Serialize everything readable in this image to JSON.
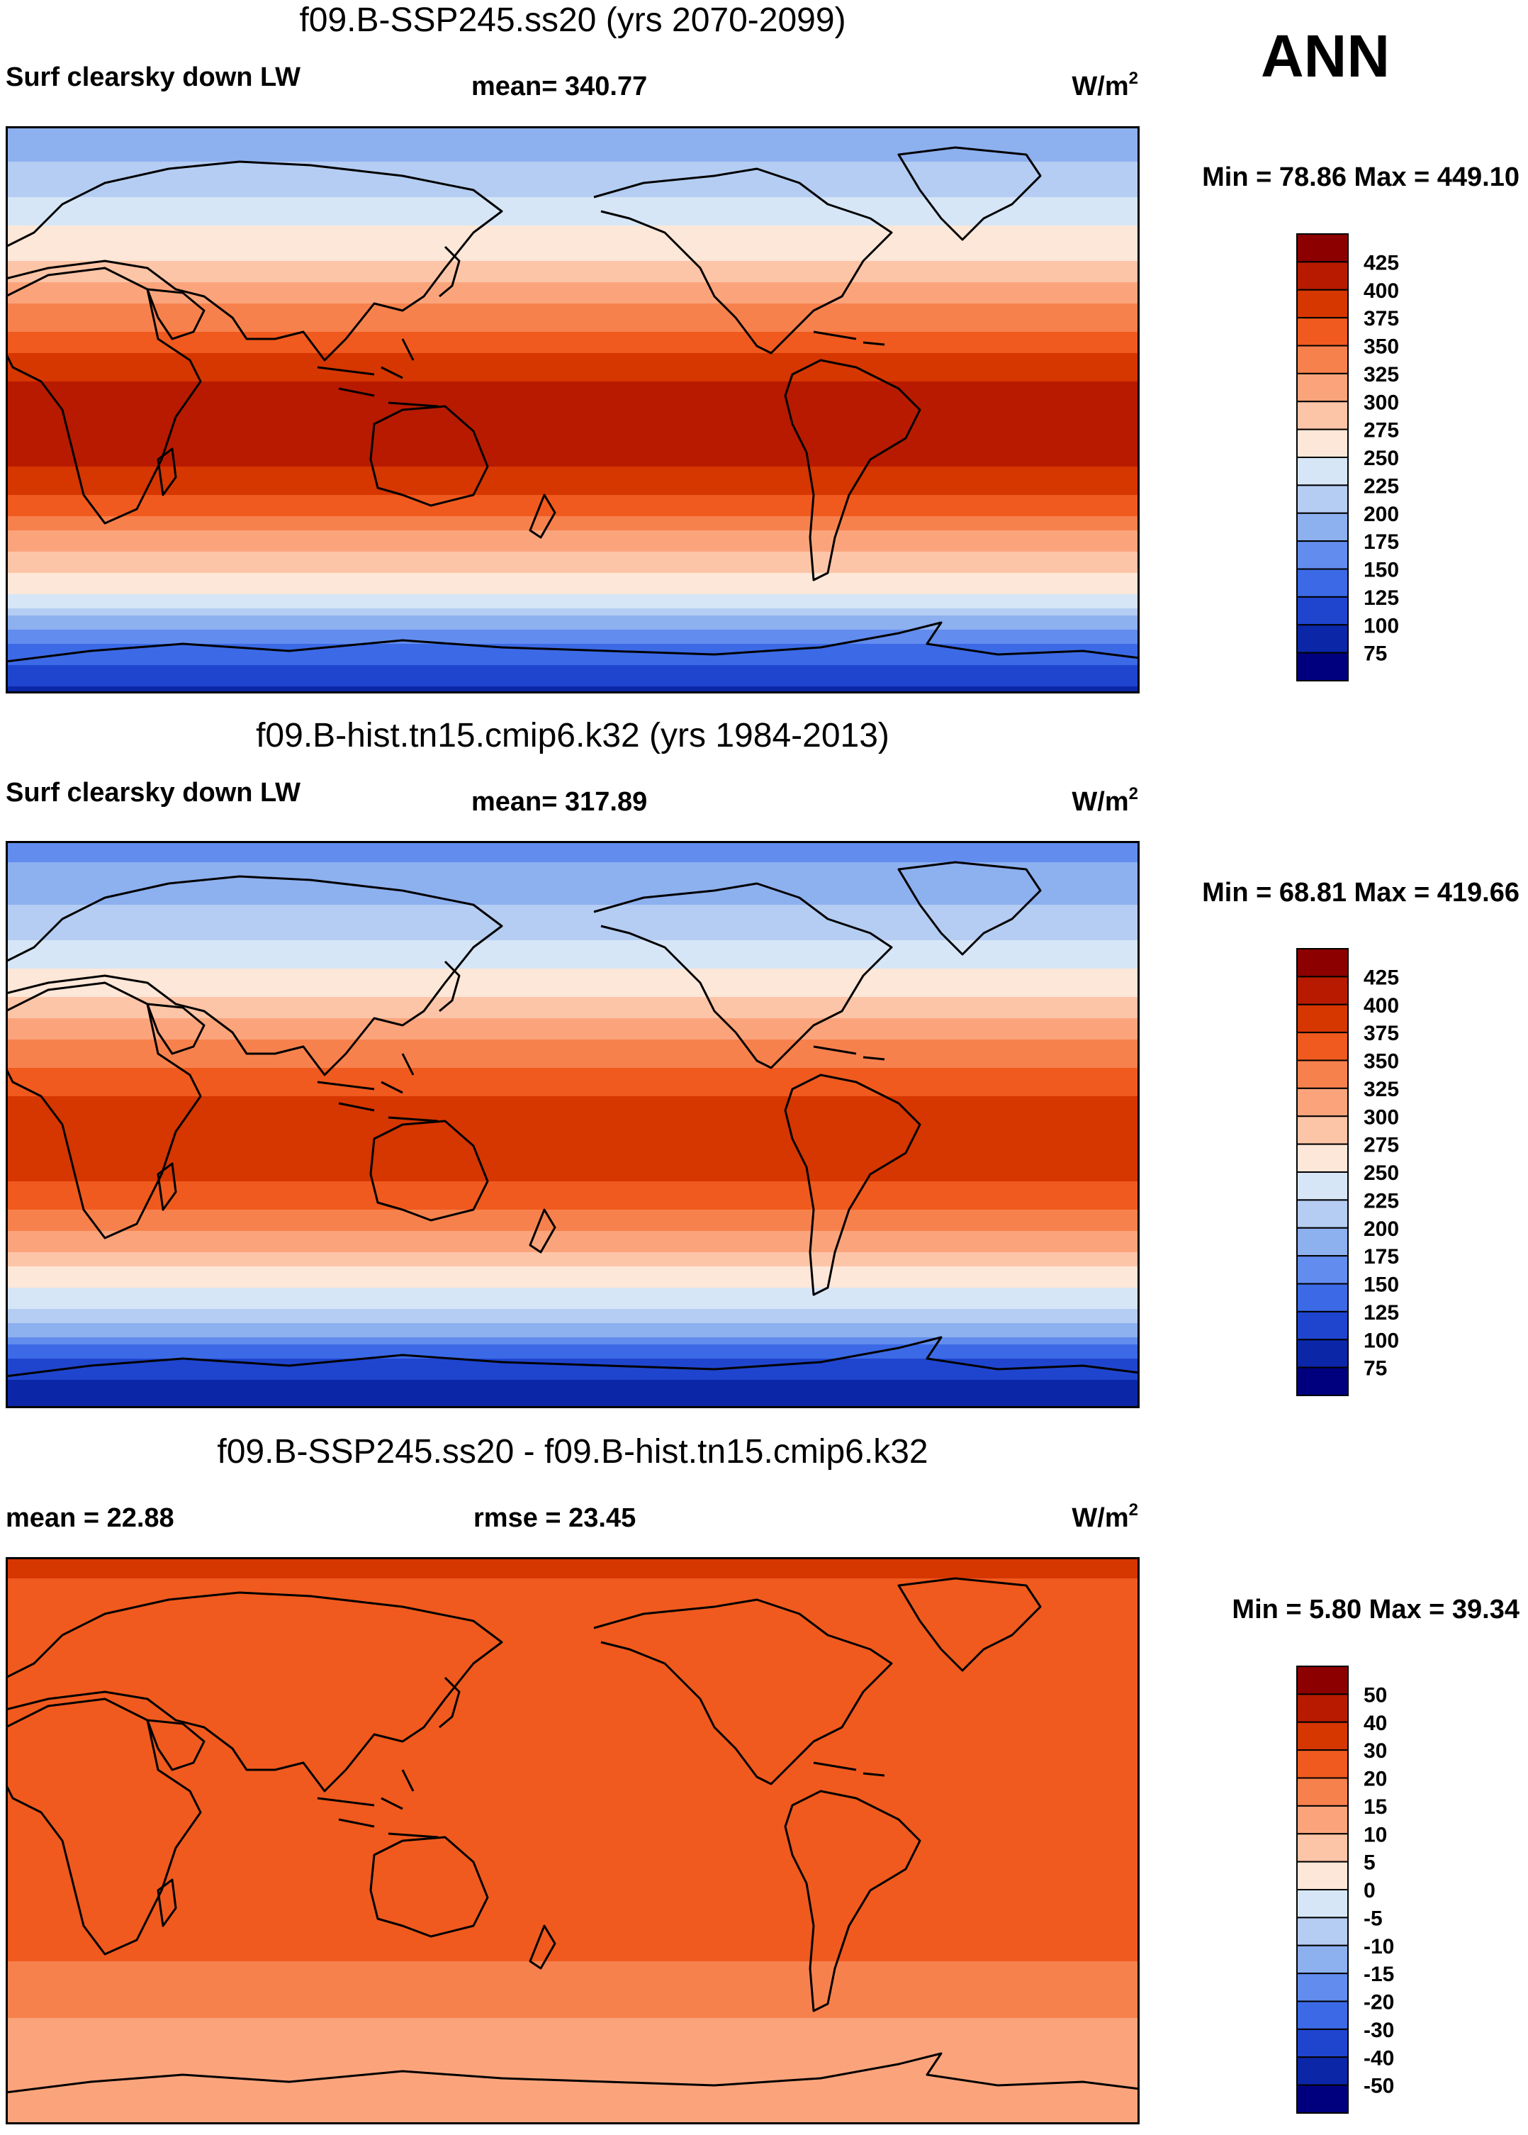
{
  "season": "ANN",
  "chart_data": [
    {
      "type": "heatmap",
      "title": "f09.B-SSP245.ss20 (yrs 2070-2099)",
      "left_label": "Surf clearsky down LW",
      "center_label": "mean= 340.77",
      "units": "W/m",
      "units_sup": "2",
      "minmax": "Min =  78.86 Max = 449.10",
      "colorbar": {
        "labels": [
          "425",
          "400",
          "375",
          "350",
          "325",
          "300",
          "275",
          "250",
          "225",
          "200",
          "175",
          "150",
          "125",
          "100",
          "75"
        ],
        "colors": [
          "#8c0000",
          "#b81a00",
          "#d63600",
          "#f05a1e",
          "#f7814d",
          "#fba47c",
          "#fdc5a7",
          "#fde7d8",
          "#d6e6f7",
          "#b5cdf2",
          "#8db0ef",
          "#628cee",
          "#3c6ae6",
          "#1f45cf",
          "#0b27a8",
          "#00007f"
        ]
      },
      "profile": {
        "lat": [
          90,
          75,
          60,
          45,
          30,
          15,
          0,
          -15,
          -30,
          -45,
          -60,
          -75,
          -90
        ],
        "values": [
          185,
          205,
          245,
          282,
          335,
          385,
          425,
          410,
          362,
          300,
          240,
          140,
          95
        ]
      }
    },
    {
      "type": "heatmap",
      "title": "f09.B-hist.tn15.cmip6.k32 (yrs 1984-2013)",
      "left_label": "Surf clearsky down LW",
      "center_label": "mean= 317.89",
      "units": "W/m",
      "units_sup": "2",
      "minmax": "Min =  68.81 Max = 419.66",
      "colorbar": {
        "labels": [
          "425",
          "400",
          "375",
          "350",
          "325",
          "300",
          "275",
          "250",
          "225",
          "200",
          "175",
          "150",
          "125",
          "100",
          "75"
        ],
        "colors": [
          "#8c0000",
          "#b81a00",
          "#d63600",
          "#f05a1e",
          "#f7814d",
          "#fba47c",
          "#fdc5a7",
          "#fde7d8",
          "#d6e6f7",
          "#b5cdf2",
          "#8db0ef",
          "#628cee",
          "#3c6ae6",
          "#1f45cf",
          "#0b27a8",
          "#00007f"
        ]
      },
      "profile": {
        "lat": [
          90,
          75,
          60,
          45,
          30,
          15,
          0,
          -15,
          -30,
          -45,
          -60,
          -75,
          -90
        ],
        "values": [
          165,
          185,
          222,
          260,
          312,
          362,
          398,
          388,
          340,
          278,
          220,
          118,
          78
        ]
      }
    },
    {
      "type": "heatmap",
      "title": "f09.B-SSP245.ss20 - f09.B-hist.tn15.cmip6.k32",
      "left_label": "mean =  22.88",
      "center_label": "rmse =  23.45",
      "units": "W/m",
      "units_sup": "2",
      "minmax": "Min =   5.80 Max =  39.34",
      "colorbar": {
        "labels": [
          "50",
          "40",
          "30",
          "20",
          "15",
          "10",
          "5",
          "0",
          "-5",
          "-10",
          "-15",
          "-20",
          "-30",
          "-40",
          "-50"
        ],
        "colors": [
          "#8c0000",
          "#b81a00",
          "#d63600",
          "#f05a1e",
          "#f7814d",
          "#fba47c",
          "#fdc5a7",
          "#fde7d8",
          "#d6e6f7",
          "#b5cdf2",
          "#8db0ef",
          "#628cee",
          "#3c6ae6",
          "#1f45cf",
          "#0b27a8",
          "#00007f"
        ]
      },
      "profile": {
        "lat": [
          90,
          75,
          60,
          45,
          30,
          15,
          0,
          -15,
          -30,
          -45,
          -60,
          -75,
          -90
        ],
        "values": [
          32,
          28,
          25,
          24,
          24,
          25,
          26,
          25,
          22,
          18,
          14,
          12,
          12
        ]
      }
    }
  ]
}
